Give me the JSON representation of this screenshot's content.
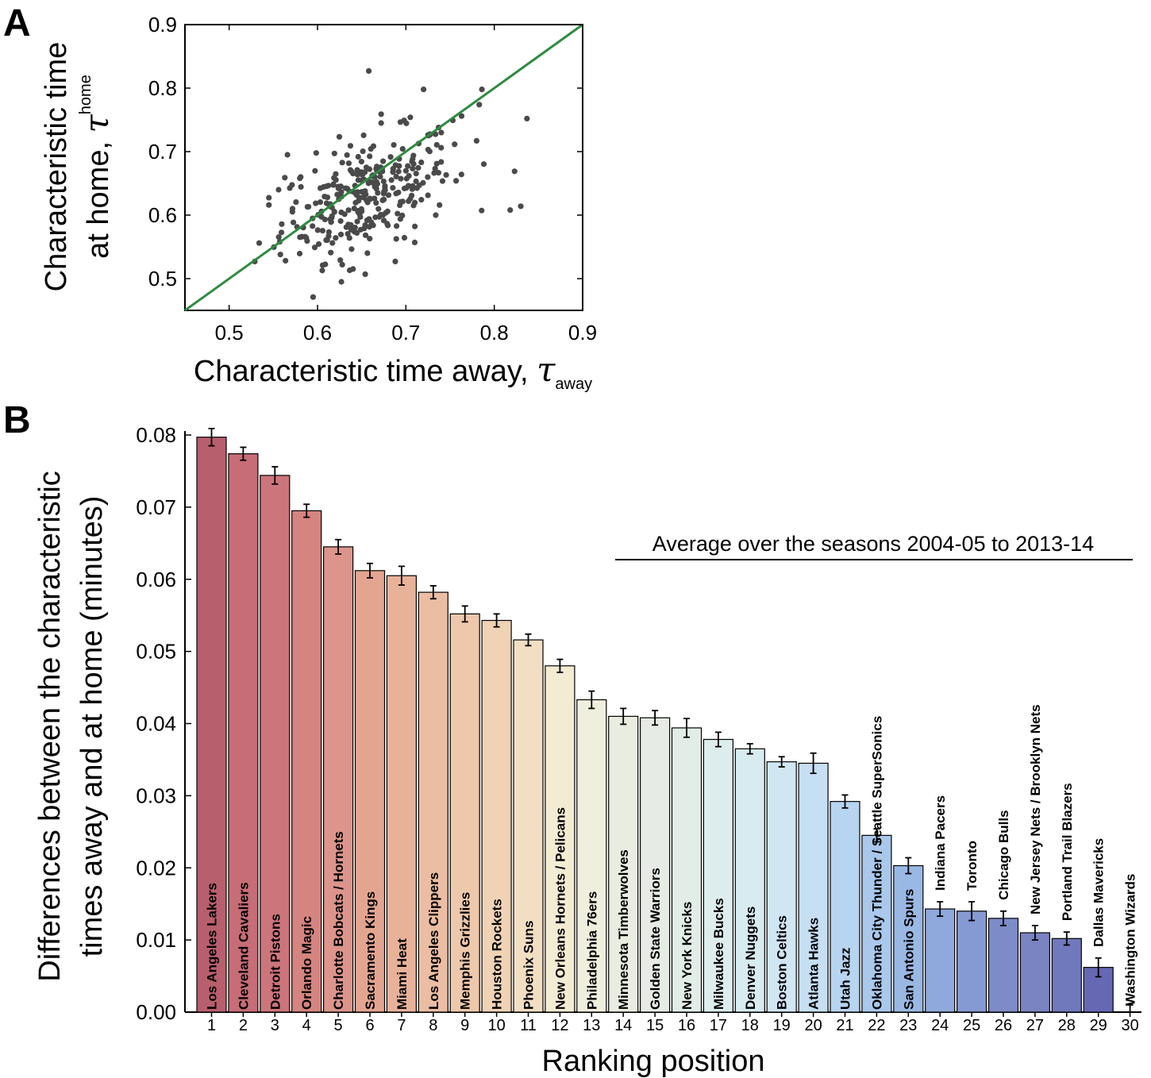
{
  "panel_a": {
    "letter": "A",
    "chart_data": {
      "type": "scatter",
      "x_label_text": "Characteristic time away, ",
      "x_label_symbol": "τ",
      "x_label_subscript": "away",
      "y_label_line1": "Characteristic time",
      "y_label_line2_text": "at home, ",
      "y_label_symbol": "τ",
      "y_label_subscript": "home",
      "xlim": [
        0.45,
        0.9
      ],
      "ylim": [
        0.45,
        0.9
      ],
      "x_ticks": [
        "0.5",
        "0.6",
        "0.7",
        "0.8",
        "0.9"
      ],
      "y_ticks": [
        "0.5",
        "0.6",
        "0.7",
        "0.8",
        "0.9"
      ],
      "reference_line": {
        "from": [
          0.45,
          0.45
        ],
        "to": [
          0.9,
          0.9
        ],
        "color": "#2e8b40"
      },
      "point_color": "#4a4a4a",
      "points": [
        [
          0.595,
          0.471
        ],
        [
          0.627,
          0.495
        ],
        [
          0.654,
          0.507
        ],
        [
          0.658,
          0.827
        ],
        [
          0.72,
          0.798
        ],
        [
          0.786,
          0.798
        ],
        [
          0.783,
          0.774
        ],
        [
          0.837,
          0.752
        ],
        [
          0.763,
          0.756
        ],
        [
          0.78,
          0.717
        ],
        [
          0.823,
          0.669
        ],
        [
          0.83,
          0.614
        ],
        [
          0.818,
          0.608
        ],
        [
          0.529,
          0.527
        ],
        [
          0.534,
          0.556
        ],
        [
          0.558,
          0.538
        ],
        [
          0.566,
          0.695
        ],
        [
          0.563,
          0.659
        ],
        [
          0.672,
          0.759
        ],
        [
          0.672,
          0.745
        ],
        [
          0.705,
          0.754
        ],
        [
          0.737,
          0.738
        ],
        [
          0.74,
          0.73
        ],
        [
          0.615,
          0.541
        ],
        [
          0.628,
          0.522
        ],
        [
          0.688,
          0.527
        ],
        [
          0.71,
          0.557
        ],
        [
          0.663,
          0.584
        ],
        [
          0.545,
          0.616
        ],
        [
          0.58,
          0.658
        ]
      ],
      "cloud_center": [
        0.655,
        0.632
      ],
      "cloud_count": 290
    }
  },
  "panel_b": {
    "letter": "B",
    "chart_data": {
      "type": "bar",
      "y_label_line1": "Differences between the characteristic",
      "y_label_line2": "times away and at home (minutes)",
      "x_label": "Ranking position",
      "annotation": "Average over the seasons 2004-05 to 2013-14",
      "ylim": [
        0.0,
        0.08
      ],
      "y_ticks": [
        "0.00",
        "0.01",
        "0.02",
        "0.03",
        "0.04",
        "0.05",
        "0.06",
        "0.07",
        "0.08"
      ],
      "categories": [
        "1",
        "2",
        "3",
        "4",
        "5",
        "6",
        "7",
        "8",
        "9",
        "10",
        "11",
        "12",
        "13",
        "14",
        "15",
        "16",
        "17",
        "18",
        "19",
        "20",
        "21",
        "22",
        "23",
        "24",
        "25",
        "26",
        "27",
        "28",
        "29",
        "30"
      ],
      "teams": [
        "Los Angeles Lakers",
        "Cleveland Cavaliers",
        "Detroit Pistons",
        "Orlando Magic",
        "Charlotte Bobcats / Hornets",
        "Sacramento Kings",
        "Miami Heat",
        "Los Angeles Clippers",
        "Memphis Grizzlies",
        "Houston Rockets",
        "Phoenix Suns",
        "New Orleans Hornets / Pelicans",
        "Philadelphia 76ers",
        "Minnesota Timberwolves",
        "Golden State Warriors",
        "New York Knicks",
        "Milwaukee Bucks",
        "Denver Nuggets",
        "Boston Celtics",
        "Atlanta Hawks",
        "Utah Jazz",
        "Oklahoma City Thunder / Seattle SuperSonics",
        "San Antonio Spurs",
        "Indiana Pacers",
        "Toronto",
        "Chicago Bulls",
        "New Jersey Nets / Brooklyn Nets",
        "Portland Trail Blazers",
        "Dallas Mavericks",
        "Washington Wizards"
      ],
      "values": [
        0.0797,
        0.0774,
        0.0744,
        0.0695,
        0.0645,
        0.0612,
        0.0605,
        0.0582,
        0.0552,
        0.0543,
        0.0516,
        0.048,
        0.0433,
        0.041,
        0.0408,
        0.0394,
        0.0378,
        0.0365,
        0.0347,
        0.0345,
        0.0292,
        0.0245,
        0.0203,
        0.0143,
        0.014,
        0.013,
        0.011,
        0.0102,
        0.0062,
        0.0
      ],
      "errors": [
        0.0012,
        0.0009,
        0.0012,
        0.0009,
        0.001,
        0.001,
        0.0013,
        0.0009,
        0.0011,
        0.0009,
        0.0008,
        0.0009,
        0.0012,
        0.0011,
        0.001,
        0.0013,
        0.001,
        0.0007,
        0.0007,
        0.0014,
        0.0009,
        0.0009,
        0.0011,
        0.001,
        0.0013,
        0.001,
        0.001,
        0.0009,
        0.0013,
        0.001
      ],
      "colors": [
        "#b85f6e",
        "#c76d77",
        "#cc757b",
        "#d5847f",
        "#dd958b",
        "#e4a590",
        "#e8b299",
        "#ebbda2",
        "#eec8ab",
        "#f0d3b5",
        "#f2dfc3",
        "#f3ebd2",
        "#f0efdd",
        "#e9ece0",
        "#e4ece3",
        "#e2ede8",
        "#ddeded",
        "#d7ebf1",
        "#d1e6f3",
        "#c6dff3",
        "#b7d4f0",
        "#a9c8ec",
        "#9ab8e4",
        "#8fa9dc",
        "#8599d2",
        "#7d8bc9",
        "#7a84c3",
        "#7079bb",
        "#6668b4",
        "#6668b4"
      ]
    }
  }
}
